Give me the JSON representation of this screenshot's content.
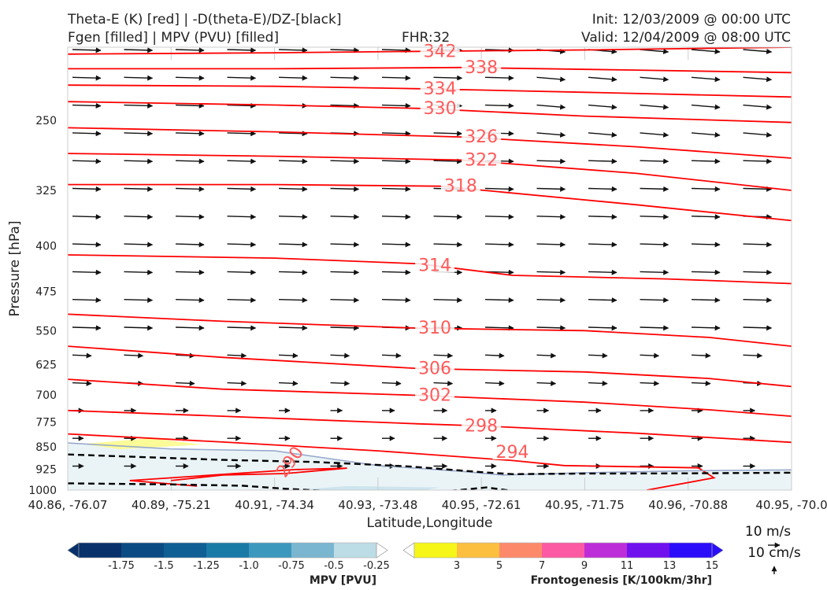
{
  "header": {
    "title_line1": "Theta-E (K) [red] | -D(theta-E)/DZ-[black]",
    "title_line2": "Fgen [filled] | MPV (PVU) [filled]",
    "fhr": "FHR:32",
    "init": "Init: 12/03/2009 @ 00:00 UTC",
    "valid": "Valid: 12/04/2009 @ 08:00 UTC"
  },
  "chart_data": {
    "type": "cross-section",
    "xlabel": "Latitude,Longitude",
    "ylabel": "Pressure [hPa]",
    "x_ticks": [
      "40.86, -76.07",
      "40.89, -75.21",
      "40.91, -74.34",
      "40.93, -73.48",
      "40.95, -72.61",
      "40.95, -71.75",
      "40.96, -70.88",
      "40.95, -70.0"
    ],
    "y_ticks": [
      250,
      325,
      400,
      475,
      550,
      625,
      700,
      775,
      850,
      925,
      1000
    ],
    "ylim": [
      1000,
      190
    ],
    "y_scale": "log-pressure",
    "x_range": [
      0,
      7
    ],
    "colors": {
      "theta_e": "#ff0000",
      "theta_e_label": "#ff5a5a",
      "stability": "#000000",
      "mpv_zero": "#9aaacc"
    },
    "theta_e_contours": [
      {
        "value": 342,
        "points": [
          [
            0,
            195
          ],
          [
            2,
            194
          ],
          [
            3.4,
            193
          ],
          [
            5,
            192
          ],
          [
            7,
            190
          ]
        ]
      },
      {
        "value": 338,
        "points": [
          [
            0,
            206
          ],
          [
            2,
            206
          ],
          [
            3.8,
            205
          ],
          [
            5.5,
            207
          ],
          [
            7,
            209
          ]
        ]
      },
      {
        "value": 334,
        "points": [
          [
            0,
            219
          ],
          [
            2,
            220
          ],
          [
            3.4,
            222
          ],
          [
            5,
            225
          ],
          [
            7,
            229
          ]
        ]
      },
      {
        "value": 330,
        "points": [
          [
            0,
            233
          ],
          [
            2,
            236
          ],
          [
            3.4,
            239
          ],
          [
            5,
            246
          ],
          [
            7,
            252
          ]
        ]
      },
      {
        "value": 326,
        "points": [
          [
            0,
            257
          ],
          [
            2,
            261
          ],
          [
            3.8,
            266
          ],
          [
            5.5,
            276
          ],
          [
            7,
            288
          ]
        ]
      },
      {
        "value": 322,
        "points": [
          [
            0,
            283
          ],
          [
            2,
            286
          ],
          [
            3.8,
            290
          ],
          [
            5.5,
            305
          ],
          [
            7,
            325
          ]
        ]
      },
      {
        "value": 318,
        "points": [
          [
            0,
            318
          ],
          [
            2,
            318
          ],
          [
            3.6,
            320
          ],
          [
            5.5,
            343
          ],
          [
            7,
            364
          ]
        ]
      },
      {
        "value": 314,
        "points": [
          [
            0,
            414
          ],
          [
            2,
            419
          ],
          [
            3.4,
            428
          ],
          [
            4.3,
            447
          ],
          [
            5.8,
            453
          ],
          [
            7,
            461
          ]
        ]
      },
      {
        "value": 310,
        "points": [
          [
            0,
            517
          ],
          [
            1.5,
            531
          ],
          [
            3.4,
            545
          ],
          [
            5,
            550
          ],
          [
            6.2,
            564
          ],
          [
            7,
            583
          ]
        ]
      },
      {
        "value": 306,
        "points": [
          [
            0,
            583
          ],
          [
            1.5,
            608
          ],
          [
            3.4,
            634
          ],
          [
            5,
            642
          ],
          [
            6.2,
            658
          ],
          [
            7,
            678
          ]
        ]
      },
      {
        "value": 302,
        "points": [
          [
            0,
            660
          ],
          [
            1.5,
            685
          ],
          [
            3.4,
            701
          ],
          [
            5,
            719
          ],
          [
            6.2,
            740
          ],
          [
            7,
            758
          ]
        ]
      },
      {
        "value": 298,
        "points": [
          [
            0,
            742
          ],
          [
            1.5,
            758
          ],
          [
            3.4,
            780
          ],
          [
            4,
            786
          ],
          [
            5.5,
            808
          ],
          [
            7,
            836
          ]
        ]
      },
      {
        "value": 294,
        "points": [
          [
            0,
            810
          ],
          [
            1.5,
            835
          ],
          [
            3,
            863
          ],
          [
            4.3,
            895
          ],
          [
            4.8,
            912
          ],
          [
            6.1,
            920
          ],
          [
            6.25,
            955
          ],
          [
            5.6,
            1000
          ]
        ]
      },
      {
        "value": 290,
        "points": [
          [
            1.0,
            965
          ],
          [
            1.5,
            945
          ],
          [
            2.1,
            940
          ],
          [
            2.7,
            921
          ],
          [
            2.2,
            926
          ],
          [
            0.6,
            965
          ],
          [
            1.25,
            985
          ]
        ]
      }
    ],
    "theta_e_labels": [
      {
        "value": 342,
        "x": 3.6,
        "p": 193
      },
      {
        "value": 338,
        "x": 4.0,
        "p": 205
      },
      {
        "value": 334,
        "x": 3.6,
        "p": 222
      },
      {
        "value": 330,
        "x": 3.6,
        "p": 239
      },
      {
        "value": 326,
        "x": 4.0,
        "p": 266
      },
      {
        "value": 322,
        "x": 4.0,
        "p": 290
      },
      {
        "value": 318,
        "x": 3.8,
        "p": 320
      },
      {
        "value": 314,
        "x": 3.55,
        "p": 431
      },
      {
        "value": 310,
        "x": 3.55,
        "p": 545
      },
      {
        "value": 306,
        "x": 3.55,
        "p": 634
      },
      {
        "value": 302,
        "x": 3.55,
        "p": 701
      },
      {
        "value": 298,
        "x": 4.0,
        "p": 786
      },
      {
        "value": 294,
        "x": 4.3,
        "p": 868
      },
      {
        "value": 290,
        "x": 2.15,
        "p": 900
      }
    ],
    "stability_contours": [
      {
        "points": [
          [
            0,
            875
          ],
          [
            1.5,
            893
          ],
          [
            2.4,
            900
          ],
          [
            3.3,
            915
          ],
          [
            4.0,
            935
          ],
          [
            4.3,
            942
          ],
          [
            5,
            940
          ],
          [
            6,
            939
          ],
          [
            7,
            937
          ]
        ]
      },
      {
        "points": [
          [
            0,
            975
          ],
          [
            1.0,
            979
          ],
          [
            1.7,
            984
          ],
          [
            2.1,
            995
          ],
          [
            2.5,
            1003
          ]
        ]
      },
      {
        "points": [
          [
            3.7,
            1003
          ],
          [
            4.05,
            990
          ],
          [
            4.3,
            1003
          ]
        ]
      }
    ],
    "mpv_zero_contour": {
      "points": [
        [
          0,
          838
        ],
        [
          1,
          857
        ],
        [
          2,
          863
        ],
        [
          3,
          912
        ],
        [
          3.8,
          932
        ],
        [
          4.2,
          945
        ],
        [
          5,
          937
        ],
        [
          6,
          930
        ],
        [
          7,
          927
        ]
      ]
    },
    "fgen_fill": {
      "value_range": "3-5",
      "color": "#fbfb98",
      "points": [
        [
          0.15,
          841
        ],
        [
          0.8,
          823
        ],
        [
          1.3,
          843
        ],
        [
          0.5,
          858
        ]
      ]
    },
    "mpv_fill": {
      "color": "#eaf4f7",
      "deep_color": "#cde4ee"
    },
    "wind_reference": {
      "horizontal": "10 m/s",
      "vertical": "10 cm/s"
    },
    "mpv_colorbar": {
      "label": "MPV [PVU]",
      "ticks": [
        "-1.75",
        "-1.5",
        "-1.25",
        "-1.0",
        "-0.75",
        "-0.5",
        "-0.25"
      ],
      "colors": [
        "#08306b",
        "#08306b",
        "#0b4b83",
        "#0f5e94",
        "#1a7ba6",
        "#3d98be",
        "#7ab6d0",
        "#bcdce6",
        "#ffffff"
      ]
    },
    "fgen_colorbar": {
      "label": "Frontogenesis [K/100km/3hr]",
      "ticks": [
        "3",
        "5",
        "7",
        "9",
        "11",
        "13",
        "15"
      ],
      "colors": [
        "#ffffff",
        "#f6f619",
        "#fcbf3f",
        "#fc8a6a",
        "#fc5aa2",
        "#be2ed8",
        "#7012ee",
        "#2b0dfa",
        "#2b0dfa"
      ]
    }
  }
}
